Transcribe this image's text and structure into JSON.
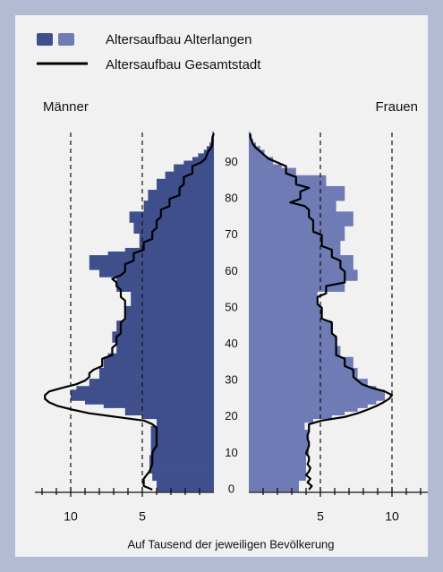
{
  "chart_data": {
    "type": "pyramid",
    "left_label": "Männer",
    "right_label": "Frauen",
    "xlabel": "Auf Tausend der jeweiligen Bevölkerung",
    "xlim": [
      0,
      12.5
    ],
    "xticks": [
      5,
      10
    ],
    "xminor_ticks": [
      1,
      2,
      3,
      4,
      6,
      7,
      8,
      9,
      11,
      12
    ],
    "grid": "dashed",
    "ylim": [
      0,
      99
    ],
    "yticks": [
      0,
      10,
      20,
      30,
      40,
      50,
      60,
      70,
      80,
      90
    ],
    "ages": [
      0,
      1,
      2,
      3,
      4,
      5,
      6,
      7,
      8,
      9,
      10,
      11,
      12,
      13,
      14,
      15,
      16,
      17,
      18,
      19,
      20,
      21,
      22,
      23,
      24,
      25,
      26,
      27,
      28,
      29,
      30,
      31,
      32,
      33,
      34,
      35,
      36,
      37,
      38,
      39,
      40,
      41,
      42,
      43,
      44,
      45,
      46,
      47,
      48,
      49,
      50,
      51,
      52,
      53,
      54,
      55,
      56,
      57,
      58,
      59,
      60,
      61,
      62,
      63,
      64,
      65,
      66,
      67,
      68,
      69,
      70,
      71,
      72,
      73,
      74,
      75,
      76,
      77,
      78,
      79,
      80,
      81,
      82,
      83,
      84,
      85,
      86,
      87,
      88,
      89,
      90,
      91,
      92,
      93,
      94,
      95,
      96,
      97,
      98
    ],
    "series": [
      {
        "name": "Altersaufbau Alterlangen",
        "kind": "bars",
        "colors": [
          "#3f4f8c",
          "#6e7bb5"
        ],
        "men": [
          4.0,
          4.0,
          4.0,
          4.3,
          4.3,
          4.5,
          4.5,
          4.5,
          4.5,
          4.5,
          4.4,
          4.4,
          4.4,
          4.4,
          4.4,
          4.4,
          4.4,
          4.4,
          4.0,
          4.0,
          5.0,
          6.2,
          6.2,
          7.7,
          9.0,
          10.0,
          10.0,
          10.0,
          9.6,
          8.7,
          8.7,
          8.0,
          8.0,
          8.0,
          7.7,
          7.7,
          7.7,
          7.4,
          6.8,
          6.8,
          6.8,
          7.1,
          7.1,
          7.1,
          6.8,
          6.8,
          6.8,
          6.2,
          6.2,
          6.2,
          6.2,
          5.8,
          5.8,
          5.8,
          5.8,
          6.8,
          6.8,
          6.8,
          6.8,
          8.0,
          8.0,
          8.7,
          8.7,
          8.7,
          8.7,
          7.4,
          6.2,
          5.2,
          5.2,
          5.2,
          5.2,
          5.6,
          5.6,
          5.6,
          5.9,
          5.9,
          5.9,
          4.9,
          4.9,
          4.9,
          4.6,
          4.6,
          4.6,
          4.0,
          4.0,
          4.0,
          3.4,
          3.4,
          2.8,
          2.8,
          2.1,
          1.5,
          1.1,
          0.7,
          0.5,
          0.3,
          0.2,
          0.1,
          0.1
        ],
        "women": [
          3.5,
          3.5,
          3.5,
          4.0,
          4.0,
          4.0,
          4.0,
          4.0,
          4.0,
          4.0,
          4.2,
          4.2,
          4.2,
          4.2,
          4.2,
          4.2,
          4.2,
          3.9,
          3.9,
          4.5,
          5.8,
          6.7,
          7.6,
          8.3,
          8.9,
          9.5,
          9.5,
          9.5,
          8.9,
          8.3,
          8.3,
          7.6,
          7.6,
          7.6,
          7.3,
          7.3,
          7.3,
          6.4,
          6.4,
          6.4,
          6.1,
          6.1,
          6.1,
          5.8,
          5.8,
          5.8,
          5.8,
          5.1,
          5.1,
          5.1,
          5.1,
          4.8,
          4.8,
          4.8,
          4.8,
          6.7,
          6.7,
          6.7,
          7.6,
          7.6,
          7.6,
          7.3,
          7.3,
          7.3,
          7.3,
          6.4,
          6.4,
          6.4,
          6.4,
          6.7,
          6.7,
          6.7,
          6.7,
          7.3,
          7.3,
          7.3,
          7.3,
          6.1,
          6.1,
          6.1,
          6.7,
          6.7,
          6.7,
          6.7,
          5.4,
          5.4,
          5.4,
          3.3,
          3.3,
          2.3,
          1.7,
          1.7,
          1.1,
          1.1,
          0.8,
          0.5,
          0.3,
          0.2,
          0.1
        ]
      },
      {
        "name": "Altersaufbau Gesamtstadt",
        "kind": "line",
        "color": "#000000",
        "men": [
          4.3,
          4.9,
          4.9,
          4.9,
          4.7,
          4.5,
          4.4,
          4.3,
          4.3,
          4.3,
          4.3,
          4.2,
          4.0,
          4.0,
          4.0,
          4.0,
          4.0,
          4.0,
          4.3,
          4.9,
          6.8,
          8.7,
          9.9,
          10.9,
          11.5,
          11.8,
          11.8,
          11.5,
          10.6,
          9.6,
          9.0,
          8.7,
          8.7,
          8.4,
          7.8,
          7.8,
          7.8,
          7.1,
          7.1,
          7.1,
          6.8,
          6.8,
          6.8,
          6.5,
          6.5,
          6.5,
          6.5,
          6.2,
          6.2,
          6.2,
          6.2,
          6.2,
          6.2,
          6.5,
          6.5,
          6.5,
          6.8,
          6.8,
          7.1,
          6.5,
          6.2,
          6.2,
          6.2,
          5.6,
          5.6,
          5.6,
          4.9,
          4.9,
          4.9,
          4.3,
          4.3,
          4.3,
          4.0,
          4.0,
          4.0,
          3.7,
          3.7,
          3.7,
          3.1,
          3.1,
          3.1,
          2.4,
          2.4,
          2.4,
          2.1,
          2.1,
          2.1,
          1.5,
          1.5,
          1.5,
          0.9,
          0.6,
          0.5,
          0.4,
          0.2,
          0.1,
          0.1,
          0.1,
          0.0
        ],
        "women": [
          4.2,
          4.4,
          4.1,
          4.3,
          4.0,
          4.2,
          4.3,
          4.1,
          4.2,
          4.2,
          4.0,
          4.1,
          4.2,
          4.2,
          4.1,
          4.1,
          4.2,
          4.2,
          4.2,
          5.1,
          6.7,
          7.6,
          8.3,
          8.9,
          9.4,
          9.8,
          10.0,
          9.5,
          8.6,
          7.9,
          7.6,
          7.3,
          7.3,
          7.3,
          6.7,
          6.7,
          6.7,
          6.1,
          6.1,
          6.1,
          6.1,
          6.1,
          6.1,
          5.8,
          5.8,
          5.8,
          5.8,
          5.1,
          5.1,
          5.1,
          5.1,
          4.8,
          4.8,
          4.8,
          5.4,
          5.4,
          5.4,
          6.7,
          6.7,
          6.7,
          6.7,
          6.4,
          6.4,
          6.4,
          5.8,
          5.8,
          5.8,
          5.1,
          5.1,
          5.1,
          5.1,
          4.5,
          4.5,
          4.5,
          4.5,
          4.2,
          4.2,
          4.2,
          3.9,
          2.9,
          3.6,
          3.6,
          3.6,
          4.2,
          3.3,
          3.3,
          3.3,
          2.6,
          2.6,
          2.6,
          2.0,
          1.4,
          1.1,
          0.8,
          0.5,
          0.3,
          0.2,
          0.1,
          0.1
        ]
      }
    ]
  }
}
